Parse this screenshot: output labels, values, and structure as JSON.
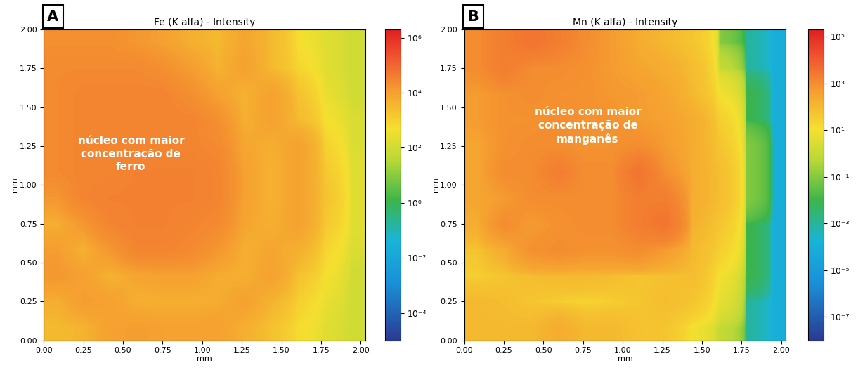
{
  "chart_data": [
    {
      "type": "heatmap",
      "panel": "A",
      "title": "Fe (K alfa) - Intensity",
      "x_label": "mm",
      "y_label": "mm",
      "annotation": "núcleo com maior\nconcentração de\nferro",
      "xlim": [
        0,
        2.03
      ],
      "ylim": [
        0,
        2.0
      ],
      "xticks": [
        {
          "value": 0,
          "label": "0.00"
        },
        {
          "value": 0.25,
          "label": "0.25"
        },
        {
          "value": 0.5,
          "label": "0.50"
        },
        {
          "value": 0.75,
          "label": "0.75"
        },
        {
          "value": 1.0,
          "label": "1.00"
        },
        {
          "value": 1.25,
          "label": "1.25"
        },
        {
          "value": 1.5,
          "label": "1.50"
        },
        {
          "value": 1.75,
          "label": "1.75"
        },
        {
          "value": 2.0,
          "label": "2.00"
        }
      ],
      "yticks": [
        {
          "value": 0,
          "label": "0.00"
        },
        {
          "value": 0.25,
          "label": "0.25"
        },
        {
          "value": 0.5,
          "label": "0.50"
        },
        {
          "value": 0.75,
          "label": "0.75"
        },
        {
          "value": 1.0,
          "label": "1.00"
        },
        {
          "value": 1.25,
          "label": "1.25"
        },
        {
          "value": 1.5,
          "label": "1.50"
        },
        {
          "value": 1.75,
          "label": "1.75"
        },
        {
          "value": 2.0,
          "label": "2.00"
        }
      ],
      "log": true,
      "colorbar_range": [
        1e-05,
        2000000.0
      ],
      "colorbar_ticks": [
        {
          "value": 0.0001,
          "label": "10⁻⁴"
        },
        {
          "value": 0.01,
          "label": "10⁻²"
        },
        {
          "value": 1,
          "label": "10⁰"
        },
        {
          "value": 100,
          "label": "10²"
        },
        {
          "value": 10000.0,
          "label": "10⁴"
        },
        {
          "value": 1000000.0,
          "label": "10⁶"
        }
      ],
      "cells": [
        [
          20000.0,
          20000.0,
          20000.0,
          15000.0,
          10000.0,
          5000.0,
          3000.0,
          8000.0,
          3000.0,
          500,
          200,
          100
        ],
        [
          25000.0,
          25000.0,
          25000.0,
          25000.0,
          20000.0,
          12000.0,
          4000.0,
          10000.0,
          3000.0,
          800,
          200,
          100
        ],
        [
          25000.0,
          30000.0,
          30000.0,
          30000.0,
          30000.0,
          20000.0,
          10000.0,
          4000.0,
          10000.0,
          2000.0,
          300,
          100
        ],
        [
          25000.0,
          30000.0,
          30000.0,
          30000.0,
          30000.0,
          30000.0,
          20000.0,
          5000.0,
          10000.0,
          3000.0,
          500,
          150
        ],
        [
          25000.0,
          30000.0,
          30000.0,
          30000.0,
          30000.0,
          30000.0,
          25000.0,
          8000.0,
          5000.0,
          10000.0,
          1000.0,
          150
        ],
        [
          25000.0,
          30000.0,
          30000.0,
          35000.0,
          35000.0,
          35000.0,
          30000.0,
          10000.0,
          4000.0,
          10000.0,
          1500.0,
          200
        ],
        [
          15000.0,
          30000.0,
          35000.0,
          35000.0,
          35000.0,
          35000.0,
          30000.0,
          10000.0,
          4000.0,
          10000.0,
          2000.0,
          200
        ],
        [
          5000.0,
          15000.0,
          30000.0,
          35000.0,
          35000.0,
          30000.0,
          25000.0,
          8000.0,
          5000.0,
          10000.0,
          1500.0,
          200
        ],
        [
          12000.0,
          4000.0,
          15000.0,
          30000.0,
          30000.0,
          25000.0,
          15000.0,
          5000.0,
          8000.0,
          5000.0,
          800,
          150
        ],
        [
          15000.0,
          10000.0,
          4000.0,
          8000.0,
          10000.0,
          10000.0,
          6000.0,
          5000.0,
          10000.0,
          2000.0,
          500,
          100
        ],
        [
          5000.0,
          12000.0,
          10000.0,
          5000.0,
          5000.0,
          5000.0,
          6000.0,
          10000.0,
          4000.0,
          1000.0,
          300,
          100
        ],
        [
          3000.0,
          4000.0,
          10000.0,
          12000.0,
          10000.0,
          10000.0,
          10000.0,
          5000.0,
          2000.0,
          600,
          200,
          100
        ]
      ]
    },
    {
      "type": "heatmap",
      "panel": "B",
      "title": "Mn (K alfa) - Intensity",
      "x_label": "mm",
      "y_label": "mm",
      "annotation": "núcleo com maior\nconcentração de\nmanganês",
      "xlim": [
        0,
        2.03
      ],
      "ylim": [
        0,
        2.0
      ],
      "xticks": [
        {
          "value": 0,
          "label": "0.00"
        },
        {
          "value": 0.25,
          "label": "0.25"
        },
        {
          "value": 0.5,
          "label": "0.50"
        },
        {
          "value": 0.75,
          "label": "0.75"
        },
        {
          "value": 1.0,
          "label": "1.00"
        },
        {
          "value": 1.25,
          "label": "1.25"
        },
        {
          "value": 1.5,
          "label": "1.50"
        },
        {
          "value": 1.75,
          "label": "1.75"
        },
        {
          "value": 2.0,
          "label": "2.00"
        }
      ],
      "yticks": [
        {
          "value": 0,
          "label": "0.00"
        },
        {
          "value": 0.25,
          "label": "0.25"
        },
        {
          "value": 0.5,
          "label": "0.50"
        },
        {
          "value": 0.75,
          "label": "0.75"
        },
        {
          "value": 1.0,
          "label": "1.00"
        },
        {
          "value": 1.25,
          "label": "1.25"
        },
        {
          "value": 1.5,
          "label": "1.50"
        },
        {
          "value": 1.75,
          "label": "1.75"
        },
        {
          "value": 2.0,
          "label": "2.00"
        }
      ],
      "log": true,
      "colorbar_range": [
        1e-08,
        200000.0
      ],
      "colorbar_ticks": [
        {
          "value": 1e-07,
          "label": "10⁻⁷"
        },
        {
          "value": 1e-05,
          "label": "10⁻⁵"
        },
        {
          "value": 0.001,
          "label": "10⁻³"
        },
        {
          "value": 0.1,
          "label": "10⁻¹"
        },
        {
          "value": 10,
          "label": "10¹"
        },
        {
          "value": 1000.0,
          "label": "10³"
        },
        {
          "value": 100000.0,
          "label": "10⁵"
        }
      ],
      "cells": [
        [
          1000.0,
          2000.0,
          3000.0,
          2000.0,
          1000.0,
          500,
          200,
          100,
          50,
          0.1,
          0.001,
          0.0001
        ],
        [
          1000.0,
          2000.0,
          1000.0,
          1000.0,
          800,
          500,
          300,
          200,
          80,
          1,
          0.001,
          0.0001
        ],
        [
          500,
          800,
          1000.0,
          800,
          800,
          600,
          500,
          300,
          100,
          10,
          0.01,
          0.0001
        ],
        [
          500,
          800,
          800,
          1000.0,
          800,
          800,
          500,
          400,
          200,
          30,
          0.01,
          0.0001
        ],
        [
          300,
          800,
          1000.0,
          1000.0,
          800,
          800,
          1000.0,
          500,
          200,
          50,
          0.1,
          0.0001
        ],
        [
          300,
          1000.0,
          1000.0,
          2000.0,
          1000.0,
          1000.0,
          3000.0,
          800,
          200,
          80,
          0.1,
          0.0001
        ],
        [
          300,
          500,
          1000.0,
          1000.0,
          1000.0,
          1000.0,
          2000.0,
          2000.0,
          200,
          80,
          0.1,
          0.0001
        ],
        [
          200,
          1000.0,
          500,
          800,
          1000.0,
          1000.0,
          2000.0,
          3000.0,
          150,
          50,
          0.01,
          0.0001
        ],
        [
          50,
          200,
          800,
          1000.0,
          800,
          800,
          1000.0,
          500,
          100,
          30,
          0.01,
          0.0001
        ],
        [
          30,
          50,
          80,
          100,
          100,
          80,
          50,
          60,
          80,
          10,
          0.01,
          0.0001
        ],
        [
          100,
          80,
          50,
          30,
          20,
          30,
          50,
          80,
          50,
          5,
          0.001,
          0.0001
        ],
        [
          100,
          100,
          100,
          200,
          100,
          100,
          60,
          50,
          10,
          1,
          0.001,
          0.0001
        ]
      ]
    }
  ]
}
